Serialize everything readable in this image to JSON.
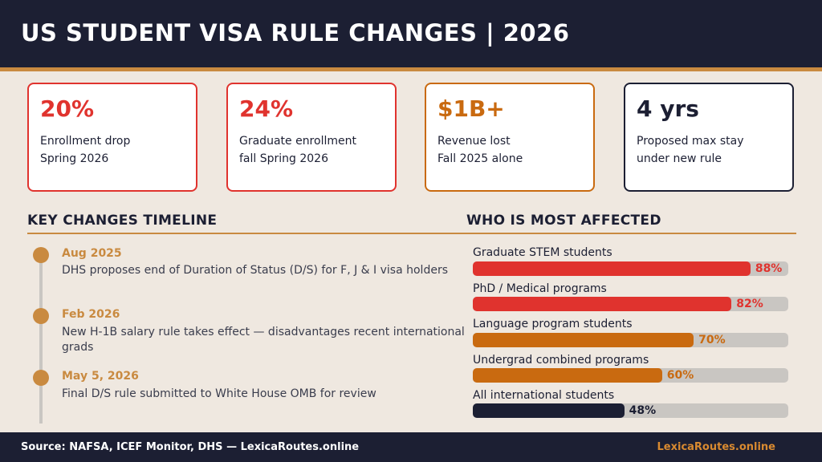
{
  "header": {
    "title": "US STUDENT VISA RULE CHANGES  |  2026"
  },
  "cards": [
    {
      "value": "20%",
      "line1": "Enrollment drop",
      "line2": "Spring 2026",
      "color": "#e0332e"
    },
    {
      "value": "24%",
      "line1": "Graduate enrollment",
      "line2": "fall Spring 2026",
      "color": "#e0332e"
    },
    {
      "value": "$1B+",
      "line1": "Revenue lost",
      "line2": "Fall 2025 alone",
      "color": "#c96a10"
    },
    {
      "value": "4 yrs",
      "line1": "Proposed max stay",
      "line2": "under new rule",
      "color": "#1c1f33"
    }
  ],
  "timeline": {
    "title": "KEY CHANGES TIMELINE",
    "events": [
      {
        "date": "Aug 2025",
        "text": "DHS proposes end of Duration of Status (D/S) for F, J & I visa holders"
      },
      {
        "date": "Feb 2026",
        "text": "New H-1B salary rule takes effect — disadvantages recent international",
        "text2": "grads"
      },
      {
        "date": "May 5, 2026",
        "text": "Final D/S rule submitted to White House OMB for review"
      }
    ]
  },
  "affected": {
    "title": "WHO IS MOST AFFECTED",
    "groups": [
      {
        "label": "Graduate STEM students",
        "value": 88,
        "display": "88%",
        "color": "#e0332e"
      },
      {
        "label": "PhD / Medical programs",
        "value": 82,
        "display": "82%",
        "color": "#e0332e"
      },
      {
        "label": "Language program students",
        "value": 70,
        "display": "70%",
        "color": "#c96a10"
      },
      {
        "label": "Undergrad combined programs",
        "value": 60,
        "display": "60%",
        "color": "#c96a10"
      },
      {
        "label": "All international students",
        "value": 48,
        "display": "48%",
        "color": "#1c1f33"
      }
    ]
  },
  "footer": {
    "source": "Source: NAFSA, ICEF Monitor, DHS — LexicaRoutes.online",
    "brand": "LexicaRoutes.online"
  }
}
